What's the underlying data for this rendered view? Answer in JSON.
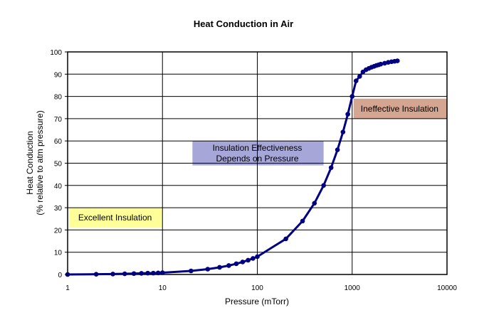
{
  "chart_data": {
    "type": "line",
    "title": "Heat Conduction in Air",
    "xlabel": "Pressure (mTorr)",
    "ylabel": [
      "Heat Conduction",
      "(% relative to atm pressure)"
    ],
    "xscale": "log",
    "xlim": [
      1,
      10000
    ],
    "ylim": [
      0,
      100
    ],
    "grid": true,
    "xticks": [
      "1",
      "10",
      "100",
      "1000",
      "10000"
    ],
    "yticks": [
      "0",
      "10",
      "20",
      "30",
      "40",
      "50",
      "60",
      "70",
      "80",
      "90",
      "100"
    ],
    "series": [
      {
        "name": "Heat Conduction",
        "color": "#000080",
        "x": [
          1,
          2,
          3,
          4,
          5,
          6,
          7,
          8,
          9,
          10,
          20,
          30,
          40,
          50,
          60,
          70,
          80,
          90,
          100,
          200,
          300,
          400,
          500,
          600,
          700,
          800,
          900,
          1000,
          1100,
          1200,
          1300,
          1400,
          1500,
          1600,
          1700,
          1800,
          1900,
          2000,
          2200,
          2400,
          2600,
          2800,
          3000
        ],
        "y": [
          0,
          0.1,
          0.2,
          0.3,
          0.4,
          0.5,
          0.6,
          0.6,
          0.7,
          0.8,
          1.6,
          2.4,
          3.2,
          4,
          4.8,
          5.6,
          6.4,
          7.2,
          8,
          16,
          24,
          32,
          40,
          48,
          56,
          64,
          72,
          80,
          87,
          89,
          91,
          92,
          92.6,
          93.1,
          93.5,
          93.9,
          94.2,
          94.5,
          94.9,
          95.3,
          95.6,
          95.8,
          96
        ]
      }
    ],
    "annotations": [
      {
        "text": [
          "Excellent Insulation"
        ],
        "color": "#FFFF99",
        "x": [
          1,
          10
        ],
        "y": [
          21,
          30
        ]
      },
      {
        "text": [
          "Insulation Effectiveness",
          "Depends on Pressure"
        ],
        "color": "#A6A6D8",
        "x": [
          20,
          500
        ],
        "y": [
          49,
          60
        ]
      },
      {
        "text": [
          "Ineffective Insulation"
        ],
        "color": "#D4A590",
        "x": [
          1000,
          10000
        ],
        "y": [
          70,
          79
        ]
      }
    ]
  }
}
